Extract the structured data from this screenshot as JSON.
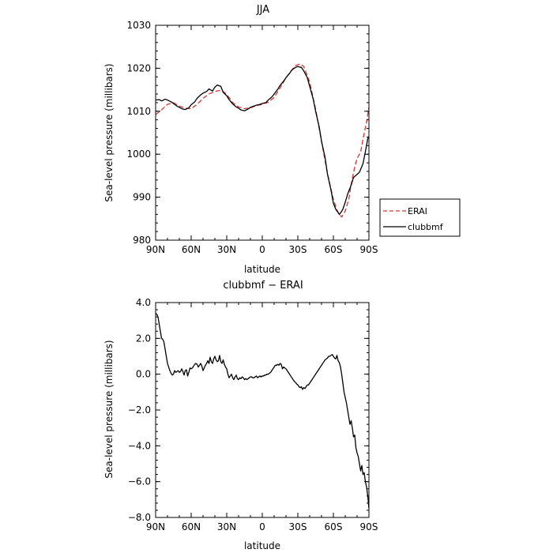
{
  "chart_data": [
    {
      "type": "line",
      "title": "JJA",
      "xlabel": "latitude",
      "ylabel": "Sea-level pressure (millibars)",
      "xlim": [
        90,
        -90
      ],
      "ylim": [
        980,
        1030
      ],
      "x_ticks": [
        90,
        60,
        30,
        0,
        -30,
        -60,
        -90
      ],
      "x_tick_labels": [
        "90N",
        "60N",
        "30N",
        "0",
        "30S",
        "60S",
        "90S"
      ],
      "y_ticks": [
        980,
        990,
        1000,
        1010,
        1020,
        1030
      ],
      "y_tick_labels": [
        "980",
        "990",
        "1000",
        "1010",
        "1020",
        "1030"
      ],
      "grid": false,
      "legend_position": "outside-right",
      "series": [
        {
          "name": "ERAI",
          "color": "#e0302a",
          "dash": "dashed",
          "x": [
            90,
            85,
            80,
            75,
            70,
            65,
            60,
            55,
            50,
            45,
            40,
            35,
            32,
            28,
            25,
            20,
            15,
            10,
            5,
            0,
            -5,
            -10,
            -15,
            -20,
            -25,
            -28,
            -32,
            -35,
            -40,
            -45,
            -50,
            -55,
            -60,
            -63,
            -65,
            -67,
            -70,
            -73,
            -75,
            -78,
            -80,
            -83,
            -85,
            -88,
            -90
          ],
          "y": [
            1009.2,
            1010.3,
            1011.6,
            1012.0,
            1011.2,
            1010.7,
            1010.6,
            1011.6,
            1013.0,
            1014.0,
            1014.6,
            1014.9,
            1014.4,
            1013.2,
            1012.0,
            1011.0,
            1010.6,
            1010.8,
            1011.3,
            1011.6,
            1012.1,
            1013.2,
            1015.4,
            1017.8,
            1019.6,
            1020.6,
            1021.0,
            1020.4,
            1016.8,
            1010.5,
            1003.0,
            995.5,
            989.5,
            987.0,
            986.0,
            985.4,
            986.8,
            989.5,
            993.0,
            997.0,
            999.0,
            1000.5,
            1003.5,
            1007.5,
            1010.9
          ]
        },
        {
          "name": "clubbmf",
          "color": "#000000",
          "dash": "solid",
          "x": [
            90,
            87,
            85,
            82,
            80,
            77,
            75,
            72,
            70,
            67,
            65,
            62,
            60,
            57,
            55,
            52,
            50,
            47,
            45,
            42,
            40,
            38,
            35,
            33,
            30,
            28,
            25,
            22,
            20,
            18,
            15,
            12,
            10,
            7,
            5,
            2,
            0,
            -3,
            -5,
            -8,
            -10,
            -13,
            -15,
            -18,
            -20,
            -23,
            -25,
            -28,
            -30,
            -33,
            -35,
            -38,
            -40,
            -43,
            -45,
            -48,
            -50,
            -53,
            -55,
            -58,
            -60,
            -62,
            -64,
            -65,
            -66,
            -68,
            -70,
            -72,
            -75,
            -77,
            -80,
            -82,
            -85,
            -87,
            -89,
            -90
          ],
          "y": [
            1012.6,
            1012.7,
            1012.4,
            1012.8,
            1012.6,
            1012.2,
            1011.8,
            1011.2,
            1010.9,
            1010.5,
            1010.4,
            1010.8,
            1011.5,
            1012.2,
            1013.0,
            1013.8,
            1014.2,
            1014.6,
            1015.2,
            1014.7,
            1015.6,
            1016.1,
            1015.8,
            1014.4,
            1013.6,
            1012.7,
            1011.7,
            1011.0,
            1010.7,
            1010.3,
            1010.1,
            1010.5,
            1010.9,
            1011.2,
            1011.4,
            1011.6,
            1011.8,
            1012.0,
            1012.6,
            1013.3,
            1014.0,
            1015.1,
            1016.0,
            1017.0,
            1017.8,
            1018.8,
            1019.6,
            1020.2,
            1020.4,
            1020.2,
            1019.4,
            1017.8,
            1015.8,
            1012.8,
            1010.0,
            1006.4,
            1003.0,
            999.2,
            995.4,
            991.6,
            988.6,
            987.2,
            986.4,
            986.0,
            986.3,
            987.2,
            988.8,
            990.7,
            992.8,
            994.6,
            995.3,
            995.8,
            997.8,
            1000.6,
            1003.6,
            1004.1
          ]
        }
      ]
    },
    {
      "type": "line",
      "title": "clubbmf − ERAI",
      "xlabel": "latitude",
      "ylabel": "Sea-level pressure (millibars)",
      "xlim": [
        90,
        -90
      ],
      "ylim": [
        -8.0,
        4.0
      ],
      "x_ticks": [
        90,
        60,
        30,
        0,
        -30,
        -60,
        -90
      ],
      "x_tick_labels": [
        "90N",
        "60N",
        "30N",
        "0",
        "30S",
        "60S",
        "90S"
      ],
      "y_ticks": [
        4.0,
        2.0,
        0.0,
        -2.0,
        -4.0,
        -6.0,
        -8.0
      ],
      "y_tick_labels": [
        "4.0",
        "2.0",
        "0.0",
        "−2.0",
        "−4.0",
        "−6.0",
        "−8.0"
      ],
      "grid": false,
      "series": [
        {
          "name": "",
          "color": "#000000",
          "dash": "solid",
          "x": [
            90,
            89,
            88,
            87,
            86,
            85,
            84,
            83,
            82,
            81,
            80,
            79,
            78,
            77,
            76,
            75,
            74,
            73,
            72,
            71,
            70,
            69,
            68,
            67,
            66,
            65,
            64,
            63,
            62,
            61,
            60,
            59,
            58,
            57,
            56,
            55,
            54,
            53,
            52,
            51,
            50,
            49,
            48,
            47,
            46,
            45,
            44,
            43,
            42,
            41,
            40,
            39,
            38,
            37,
            36,
            35,
            34,
            33,
            32,
            31,
            30,
            29,
            28,
            27,
            26,
            25,
            24,
            23,
            22,
            21,
            20,
            19,
            18,
            17,
            16,
            15,
            14,
            13,
            12,
            11,
            10,
            9,
            8,
            7,
            6,
            5,
            4,
            3,
            2,
            1,
            0,
            -1,
            -2,
            -3,
            -4,
            -5,
            -6,
            -7,
            -8,
            -9,
            -10,
            -11,
            -12,
            -13,
            -14,
            -15,
            -16,
            -17,
            -18,
            -19,
            -20,
            -21,
            -22,
            -23,
            -24,
            -25,
            -26,
            -27,
            -28,
            -29,
            -30,
            -31,
            -32,
            -33,
            -34,
            -35,
            -36,
            -37,
            -38,
            -39,
            -40,
            -41,
            -42,
            -43,
            -44,
            -45,
            -46,
            -47,
            -48,
            -49,
            -50,
            -51,
            -52,
            -53,
            -54,
            -55,
            -56,
            -57,
            -58,
            -59,
            -60,
            -61,
            -62,
            -63,
            -64,
            -65,
            -66,
            -67,
            -68,
            -69,
            -70,
            -71,
            -72,
            -73,
            -74,
            -75,
            -76,
            -77,
            -78,
            -79,
            -80,
            -81,
            -82,
            -83,
            -84,
            -85,
            -86,
            -87,
            -88,
            -89,
            -90
          ],
          "y": [
            3.4,
            3.35,
            3.2,
            2.8,
            2.4,
            2.0,
            1.95,
            1.8,
            1.4,
            1.0,
            0.6,
            0.4,
            0.2,
            0.05,
            -0.05,
            0.0,
            0.2,
            0.1,
            0.15,
            0.2,
            0.1,
            0.15,
            0.3,
            0.15,
            -0.05,
            0.2,
            0.25,
            -0.1,
            0.1,
            0.35,
            0.3,
            0.35,
            0.45,
            0.55,
            0.6,
            0.55,
            0.4,
            0.5,
            0.6,
            0.45,
            0.2,
            0.35,
            0.5,
            0.6,
            0.75,
            0.6,
            0.95,
            0.7,
            0.6,
            0.85,
            1.0,
            0.8,
            0.7,
            0.75,
            1.05,
            0.7,
            0.6,
            0.8,
            0.55,
            0.4,
            0.3,
            0.0,
            -0.2,
            -0.1,
            0.0,
            -0.2,
            -0.3,
            -0.15,
            -0.05,
            -0.25,
            -0.3,
            -0.2,
            -0.25,
            -0.15,
            -0.2,
            -0.3,
            -0.25,
            -0.3,
            -0.25,
            -0.2,
            -0.15,
            -0.15,
            -0.2,
            -0.2,
            -0.15,
            -0.1,
            -0.2,
            -0.15,
            -0.1,
            -0.15,
            -0.1,
            -0.1,
            -0.05,
            -0.05,
            0.0,
            0.0,
            0.05,
            0.1,
            0.2,
            0.3,
            0.4,
            0.5,
            0.5,
            0.55,
            0.5,
            0.6,
            0.55,
            0.3,
            0.4,
            0.35,
            0.3,
            0.2,
            0.1,
            0.0,
            -0.1,
            -0.2,
            -0.3,
            -0.4,
            -0.45,
            -0.55,
            -0.6,
            -0.7,
            -0.75,
            -0.7,
            -0.85,
            -0.75,
            -0.8,
            -0.7,
            -0.6,
            -0.6,
            -0.5,
            -0.4,
            -0.3,
            -0.2,
            -0.1,
            0.0,
            0.1,
            0.2,
            0.3,
            0.4,
            0.5,
            0.6,
            0.7,
            0.8,
            0.85,
            0.9,
            1.0,
            1.0,
            1.05,
            1.1,
            1.0,
            0.9,
            0.85,
            1.05,
            0.75,
            0.65,
            0.4,
            0.0,
            -0.5,
            -1.0,
            -1.3,
            -1.6,
            -2.0,
            -2.4,
            -2.8,
            -2.6,
            -3.0,
            -3.5,
            -3.4,
            -4.1,
            -4.4,
            -4.6,
            -5.0,
            -5.4,
            -5.1,
            -5.6,
            -5.5,
            -6.0,
            -6.3,
            -6.8,
            -7.5
          ]
        }
      ]
    }
  ]
}
